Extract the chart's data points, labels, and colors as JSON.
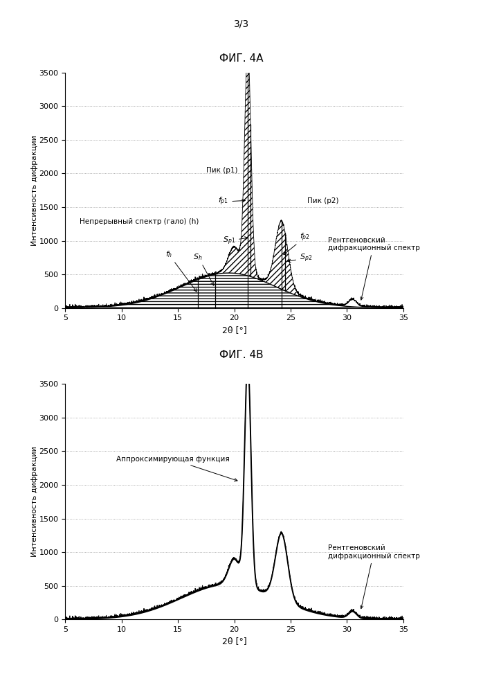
{
  "page_label": "3/3",
  "fig4a_title": "ФИГ. 4А",
  "fig4b_title": "ФИГ. 4В",
  "xlabel": "2θ [°]",
  "ylabel": "Интенсивность дифракции",
  "xlim": [
    5,
    35
  ],
  "ylim": [
    0,
    3500
  ],
  "yticks": [
    0,
    500,
    1000,
    1500,
    2000,
    2500,
    3000,
    3500
  ],
  "xticks": [
    5,
    10,
    15,
    20,
    25,
    30,
    35
  ],
  "background_color": "#ffffff",
  "grid_color": "#999999",
  "line_color": "#000000",
  "ann4a_halo": "Непрерывный спектр (гало) (h)",
  "ann4a_pik1": "Пик (p1)",
  "ann4a_pik2": "Пик (p2)",
  "ann4a_xrd": "Рентгеновский\nдифракционный спектр",
  "ann4b_fit": "Аппроксимирующая функция",
  "ann4b_xrd": "Рентгеновский\nдифракционный спектр"
}
